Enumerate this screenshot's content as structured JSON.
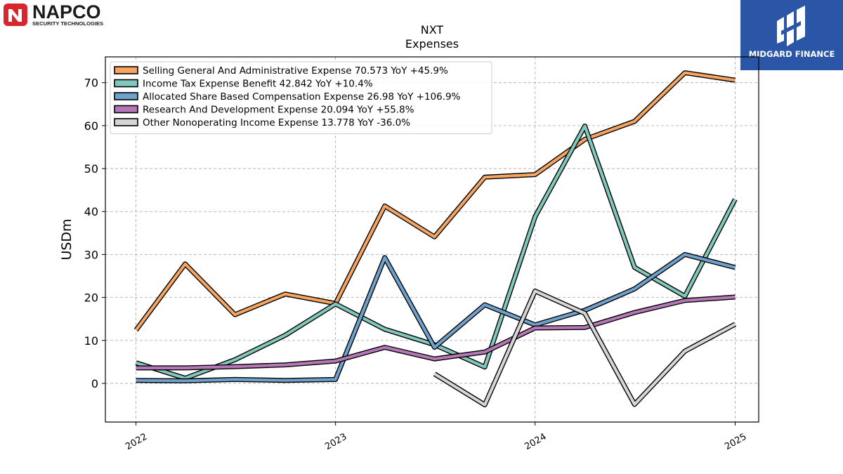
{
  "logo_left": {
    "name": "NAPCO",
    "tagline": "SECURITY TECHNOLOGIES"
  },
  "logo_right": {
    "brand": "MIDGARD FINANCE"
  },
  "chart_data": {
    "type": "line",
    "title": "NXT",
    "subtitle": "Expenses",
    "ylabel": "USDm",
    "xlabel": "",
    "ylim": [
      -9,
      76
    ],
    "yticks": [
      0,
      10,
      20,
      30,
      40,
      50,
      60,
      70
    ],
    "xlim": [
      "2021-11-06",
      "2025-02-13"
    ],
    "xticks": [
      "2022",
      "2023",
      "2024",
      "2025"
    ],
    "xtick_dates": [
      "2022-01-01",
      "2023-01-01",
      "2024-01-01",
      "2025-01-01"
    ],
    "grid": true,
    "legend_position": "top-left",
    "series": [
      {
        "name": "Selling General And Administrative Expense",
        "legend": "Selling General And Administrative Expense  70.573 YoY +45.9%",
        "color": "#f5a55f",
        "x": [
          "2022-01-01",
          "2022-04-01",
          "2022-07-01",
          "2022-10-01",
          "2023-01-01",
          "2023-04-01",
          "2023-07-01",
          "2023-10-01",
          "2024-01-01",
          "2024-04-01",
          "2024-07-01",
          "2024-10-01",
          "2025-01-01"
        ],
        "y": [
          12.4,
          27.8,
          16.0,
          20.8,
          18.6,
          41.3,
          34.1,
          48.0,
          48.6,
          56.8,
          61.0,
          72.3,
          70.573
        ]
      },
      {
        "name": "Income Tax Expense Benefit",
        "legend": "Income Tax Expense Benefit  42.842 YoY +10.4%",
        "color": "#7fc8bb",
        "x": [
          "2022-01-01",
          "2022-04-01",
          "2022-07-01",
          "2022-10-01",
          "2023-01-01",
          "2023-04-01",
          "2023-07-01",
          "2023-10-01",
          "2024-01-01",
          "2024-04-01",
          "2024-07-01",
          "2024-10-01",
          "2025-01-01"
        ],
        "y": [
          4.8,
          1.2,
          5.5,
          11.2,
          18.5,
          12.6,
          9.0,
          3.8,
          38.8,
          59.9,
          27.0,
          20.3,
          42.842
        ]
      },
      {
        "name": "Allocated Share Based Compensation Expense",
        "legend": "Allocated Share Based Compensation Expense  26.98 YoY +106.9%",
        "color": "#6ea2cc",
        "x": [
          "2022-01-01",
          "2022-04-01",
          "2022-07-01",
          "2022-10-01",
          "2023-01-01",
          "2023-04-01",
          "2023-07-01",
          "2023-10-01",
          "2024-01-01",
          "2024-04-01",
          "2024-07-01",
          "2024-10-01",
          "2025-01-01"
        ],
        "y": [
          0.7,
          0.6,
          0.9,
          0.7,
          0.9,
          29.3,
          8.4,
          18.3,
          13.6,
          17.0,
          22.0,
          30.0,
          26.98
        ]
      },
      {
        "name": "Research And Development Expense",
        "legend": "Research And Development Expense  20.094 YoY +55.8%",
        "color": "#b677b8",
        "x": [
          "2022-01-01",
          "2022-04-01",
          "2022-07-01",
          "2022-10-01",
          "2023-01-01",
          "2023-04-01",
          "2023-07-01",
          "2023-10-01",
          "2024-01-01",
          "2024-04-01",
          "2024-07-01",
          "2024-10-01",
          "2025-01-01"
        ],
        "y": [
          3.6,
          3.6,
          3.9,
          4.3,
          5.2,
          8.4,
          5.7,
          7.3,
          12.9,
          13.0,
          16.5,
          19.3,
          20.094
        ]
      },
      {
        "name": "Other Nonoperating Income Expense",
        "legend": "Other Nonoperating Income Expense  13.778 YoY -36.0%",
        "color": "#d6d6d6",
        "x": [
          "2023-07-01",
          "2023-10-01",
          "2024-01-01",
          "2024-04-01",
          "2024-07-01",
          "2024-10-01",
          "2025-01-01"
        ],
        "y": [
          2.2,
          -5.0,
          21.5,
          16.3,
          -4.9,
          7.5,
          13.778
        ]
      }
    ]
  }
}
